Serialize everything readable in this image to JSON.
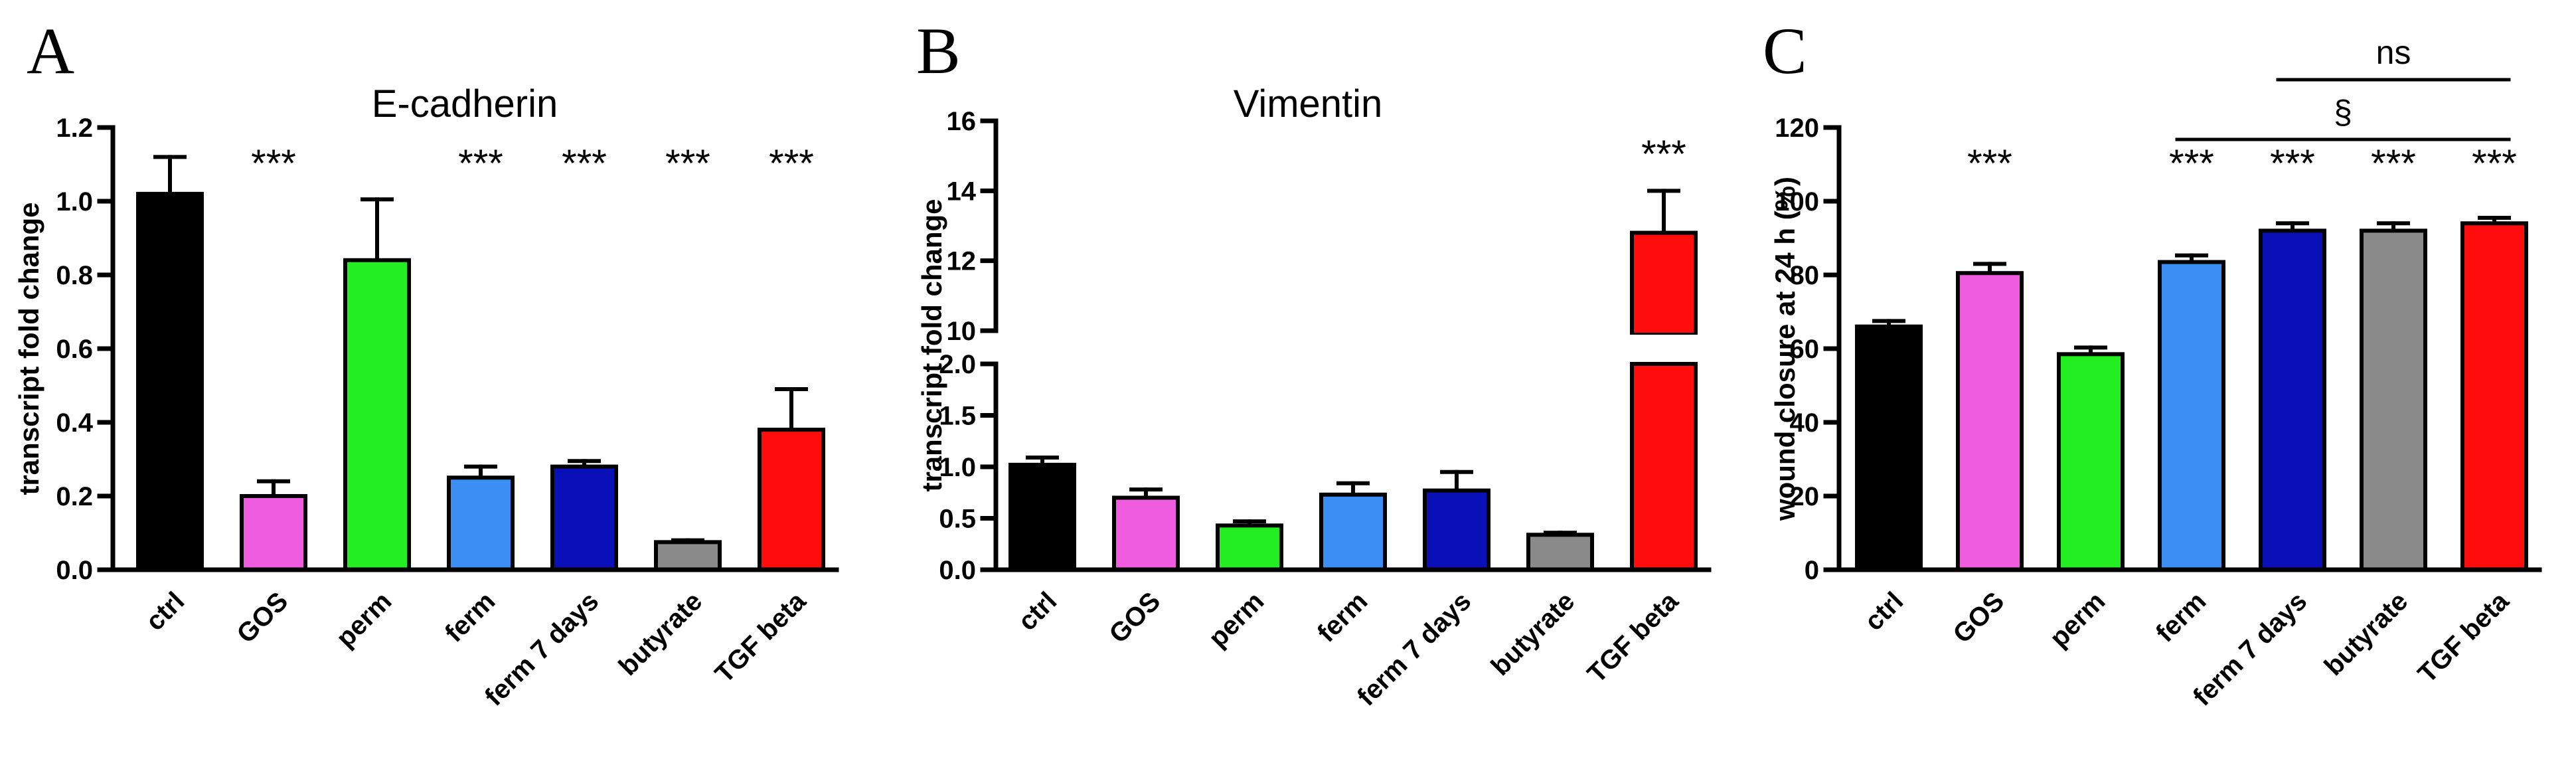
{
  "colors": {
    "ctrl": "#000000",
    "GOS": "#f05ce0",
    "perm": "#22ee22",
    "ferm": "#3a8ef4",
    "ferm 7 days": "#0a10b8",
    "butyrate": "#8a8a8a",
    "TGF beta": "#ff0d0d"
  },
  "chart_data": [
    {
      "panel": "A",
      "type": "bar",
      "title": "E-cadherin",
      "xlabel": "",
      "ylabel": "transcript fold change",
      "ylim": [
        0,
        1.2
      ],
      "yticks": [
        "0.0",
        "0.2",
        "0.4",
        "0.6",
        "0.8",
        "1.0",
        "1.2"
      ],
      "categories": [
        "ctrl",
        "GOS",
        "perm",
        "ferm",
        "ferm 7 days",
        "butyrate",
        "TGF beta"
      ],
      "values": [
        1.02,
        0.2,
        0.84,
        0.25,
        0.28,
        0.075,
        0.38
      ],
      "errors": [
        0.1,
        0.04,
        0.165,
        0.03,
        0.015,
        0.005,
        0.11
      ],
      "annotations": [
        "",
        "***",
        "",
        "***",
        "***",
        "***",
        "***"
      ]
    },
    {
      "panel": "B",
      "type": "bar",
      "title": "Vimentin",
      "xlabel": "",
      "ylabel": "transcript fold change",
      "ylim_lower": [
        0,
        2.0
      ],
      "ylim_upper": [
        10,
        16
      ],
      "yticks_lower": [
        "0.0",
        "0.5",
        "1.0",
        "1.5",
        "2.0"
      ],
      "yticks_upper": [
        "10",
        "12",
        "14",
        "16"
      ],
      "categories": [
        "ctrl",
        "GOS",
        "perm",
        "ferm",
        "ferm 7 days",
        "butyrate",
        "TGF beta"
      ],
      "values": [
        1.02,
        0.7,
        0.43,
        0.73,
        0.77,
        0.34,
        12.8
      ],
      "errors": [
        0.07,
        0.08,
        0.04,
        0.11,
        0.18,
        0.02,
        1.2
      ],
      "annotations": [
        "",
        "",
        "",
        "",
        "",
        "",
        "***"
      ]
    },
    {
      "panel": "C",
      "type": "bar",
      "title": "",
      "xlabel": "",
      "ylabel": "wound closure at 24 h (%)",
      "ylim": [
        0,
        120
      ],
      "yticks": [
        "0",
        "20",
        "40",
        "60",
        "80",
        "100",
        "120"
      ],
      "categories": [
        "ctrl",
        "GOS",
        "perm",
        "ferm",
        "ferm 7 days",
        "butyrate",
        "TGF beta"
      ],
      "values": [
        66,
        80.5,
        58.5,
        83.5,
        92,
        92,
        94
      ],
      "errors": [
        1.5,
        2.5,
        1.8,
        1.8,
        2,
        2,
        1.5
      ],
      "annotations": [
        "",
        "***",
        "",
        "***",
        "***",
        "***",
        "***"
      ],
      "brackets": [
        {
          "label": "ns",
          "from": "ferm 7 days",
          "to": "TGF beta"
        },
        {
          "label": "§",
          "from": "ferm",
          "to": "TGF beta"
        }
      ]
    }
  ]
}
